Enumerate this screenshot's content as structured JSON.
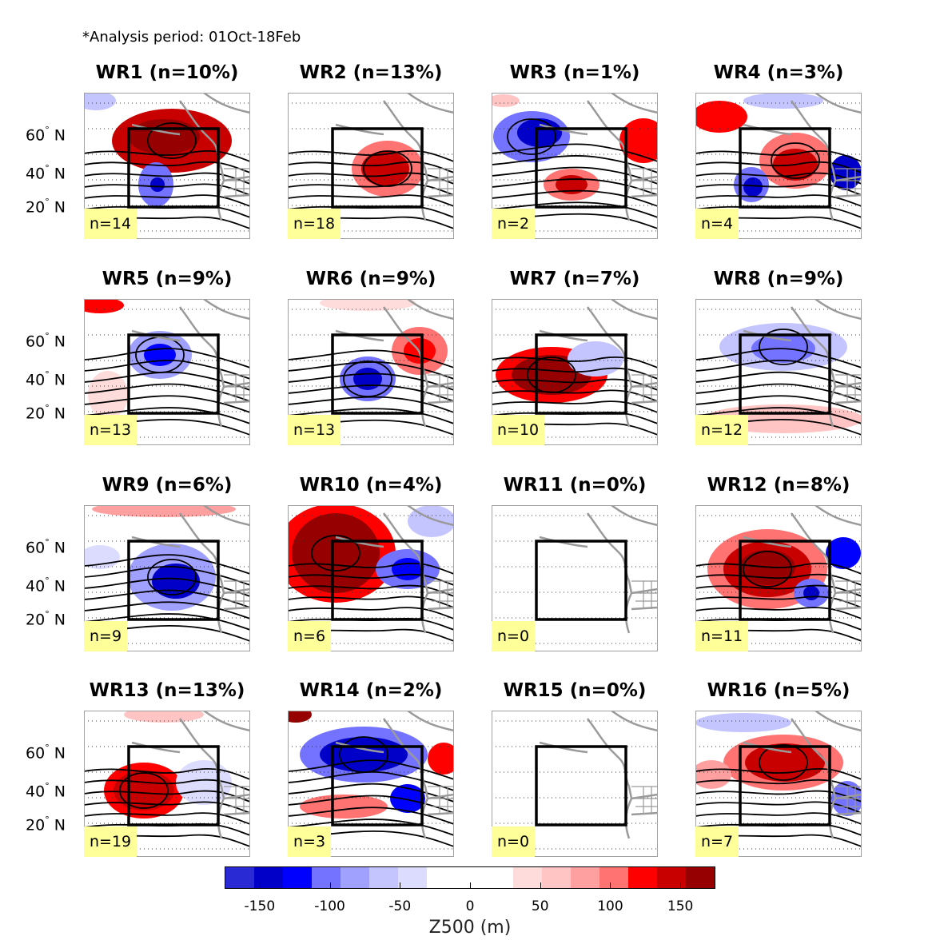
{
  "header": {
    "note": "*Analysis period: 01Oct-18Feb"
  },
  "lat_labels": [
    "60° N",
    "40° N",
    "20° N"
  ],
  "colorbar": {
    "label": "Z500 (m)",
    "ticks": [
      "-150",
      "-100",
      "-50",
      "0",
      "50",
      "100",
      "150"
    ],
    "tick_values": [
      -150,
      -100,
      -50,
      0,
      50,
      100,
      150
    ],
    "range": [
      -175,
      175
    ],
    "colors": [
      "#2a2ad4",
      "#0000c8",
      "#0000ff",
      "#7373ff",
      "#a0a0ff",
      "#c4c4ff",
      "#dcdcff",
      "#ffffff",
      "#ffffff",
      "#ffffff",
      "#ffdcdc",
      "#ffc4c4",
      "#ffa0a0",
      "#ff7373",
      "#ff0000",
      "#c80000",
      "#960000"
    ]
  },
  "chart_data": {
    "type": "heatmap",
    "title": "",
    "panels": [
      {
        "title": "WR1 (n=10%)",
        "count": "n=14",
        "dominant": "positive"
      },
      {
        "title": "WR2 (n=13%)",
        "count": "n=18",
        "dominant": "positive"
      },
      {
        "title": "WR3 (n=1%)",
        "count": "n=2",
        "dominant": "dipole"
      },
      {
        "title": "WR4 (n=3%)",
        "count": "n=4",
        "dominant": "positive"
      },
      {
        "title": "WR5 (n=9%)",
        "count": "n=13",
        "dominant": "negative"
      },
      {
        "title": "WR6 (n=9%)",
        "count": "n=13",
        "dominant": "dipole"
      },
      {
        "title": "WR7 (n=7%)",
        "count": "n=10",
        "dominant": "positive"
      },
      {
        "title": "WR8 (n=9%)",
        "count": "n=12",
        "dominant": "negative"
      },
      {
        "title": "WR9 (n=6%)",
        "count": "n=9",
        "dominant": "negative"
      },
      {
        "title": "WR10 (n=4%)",
        "count": "n=6",
        "dominant": "positive"
      },
      {
        "title": "WR11 (n=0%)",
        "count": "n=0",
        "dominant": "none"
      },
      {
        "title": "WR12 (n=8%)",
        "count": "n=11",
        "dominant": "positive"
      },
      {
        "title": "WR13 (n=13%)",
        "count": "n=19",
        "dominant": "positive"
      },
      {
        "title": "WR14 (n=2%)",
        "count": "n=3",
        "dominant": "negative"
      },
      {
        "title": "WR15 (n=0%)",
        "count": "n=0",
        "dominant": "none"
      },
      {
        "title": "WR16 (n=5%)",
        "count": "n=7",
        "dominant": "positive"
      }
    ]
  }
}
